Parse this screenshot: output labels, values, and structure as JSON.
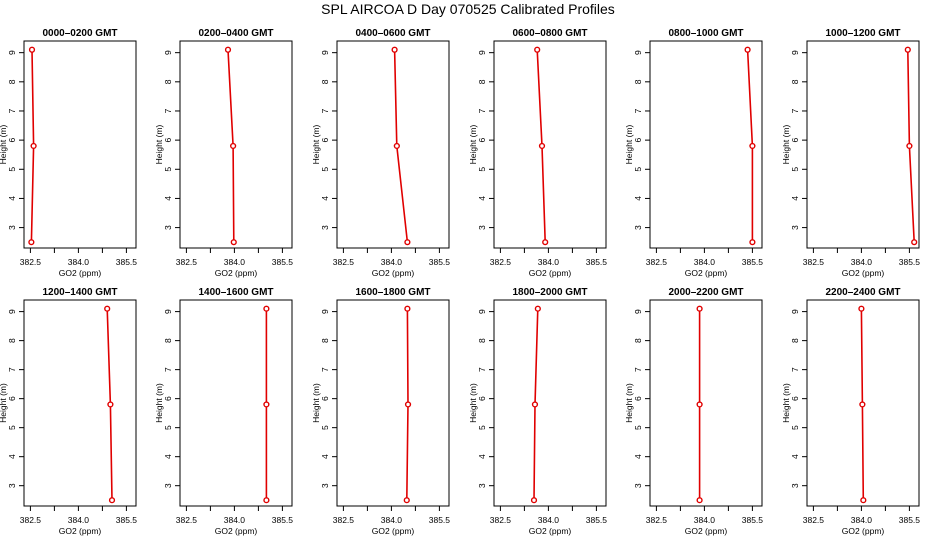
{
  "title": "SPL AIRCOA D  Day 070525  Calibrated Profiles",
  "colors": {
    "series": "#e00000",
    "axes": "#000000",
    "background": "#ffffff"
  },
  "chart_data": [
    {
      "type": "line",
      "title": "0000–0200 GMT",
      "xlabel": "GO2 (ppm)",
      "ylabel": "Height (m)",
      "x_ticks": [
        "382.5",
        "384.0",
        "385.5"
      ],
      "y_ticks": [
        "3",
        "4",
        "5",
        "6",
        "7",
        "8",
        "9"
      ],
      "xlim": [
        382.3,
        385.8
      ],
      "ylim": [
        2.3,
        9.4
      ],
      "heights": [
        9.1,
        5.8,
        2.5
      ],
      "values": [
        382.55,
        382.6,
        382.53
      ]
    },
    {
      "type": "line",
      "title": "0200–0400 GMT",
      "xlabel": "GO2 (ppm)",
      "ylabel": "Height (m)",
      "x_ticks": [
        "382.5",
        "384.0",
        "385.5"
      ],
      "y_ticks": [
        "3",
        "4",
        "5",
        "6",
        "7",
        "8",
        "9"
      ],
      "xlim": [
        382.3,
        385.8
      ],
      "ylim": [
        2.3,
        9.4
      ],
      "heights": [
        9.1,
        5.8,
        2.5
      ],
      "values": [
        383.8,
        383.96,
        383.98
      ]
    },
    {
      "type": "line",
      "title": "0400–0600 GMT",
      "xlabel": "GO2 (ppm)",
      "ylabel": "Height (m)",
      "x_ticks": [
        "382.5",
        "384.0",
        "385.5"
      ],
      "y_ticks": [
        "3",
        "4",
        "5",
        "6",
        "7",
        "8",
        "9"
      ],
      "xlim": [
        382.3,
        385.8
      ],
      "ylim": [
        2.3,
        9.4
      ],
      "heights": [
        9.1,
        5.8,
        2.5
      ],
      "values": [
        384.1,
        384.17,
        384.5
      ]
    },
    {
      "type": "line",
      "title": "0600–0800 GMT",
      "xlabel": "GO2 (ppm)",
      "ylabel": "Height (m)",
      "x_ticks": [
        "382.5",
        "384.0",
        "385.5"
      ],
      "y_ticks": [
        "3",
        "4",
        "5",
        "6",
        "7",
        "8",
        "9"
      ],
      "xlim": [
        382.3,
        385.8
      ],
      "ylim": [
        2.3,
        9.4
      ],
      "heights": [
        9.1,
        5.8,
        2.5
      ],
      "values": [
        383.65,
        383.8,
        383.9
      ]
    },
    {
      "type": "line",
      "title": "0800–1000 GMT",
      "xlabel": "GO2 (ppm)",
      "ylabel": "Height (m)",
      "x_ticks": [
        "382.5",
        "384.0",
        "385.5"
      ],
      "y_ticks": [
        "3",
        "4",
        "5",
        "6",
        "7",
        "8",
        "9"
      ],
      "xlim": [
        382.3,
        385.8
      ],
      "ylim": [
        2.3,
        9.4
      ],
      "heights": [
        9.1,
        5.8,
        2.5
      ],
      "values": [
        385.35,
        385.5,
        385.5
      ]
    },
    {
      "type": "line",
      "title": "1000–1200 GMT",
      "xlabel": "GO2 (ppm)",
      "ylabel": "Height (m)",
      "x_ticks": [
        "382.5",
        "384.0",
        "385.5"
      ],
      "y_ticks": [
        "3",
        "4",
        "5",
        "6",
        "7",
        "8",
        "9"
      ],
      "xlim": [
        382.3,
        385.8
      ],
      "ylim": [
        2.3,
        9.4
      ],
      "heights": [
        9.1,
        5.8,
        2.5
      ],
      "values": [
        385.45,
        385.5,
        385.65
      ]
    },
    {
      "type": "line",
      "title": "1200–1400 GMT",
      "xlabel": "GO2 (ppm)",
      "ylabel": "Height (m)",
      "x_ticks": [
        "382.5",
        "384.0",
        "385.5"
      ],
      "y_ticks": [
        "3",
        "4",
        "5",
        "6",
        "7",
        "8",
        "9"
      ],
      "xlim": [
        382.3,
        385.8
      ],
      "ylim": [
        2.3,
        9.4
      ],
      "heights": [
        9.1,
        5.8,
        2.5
      ],
      "values": [
        384.9,
        385.0,
        385.05
      ]
    },
    {
      "type": "line",
      "title": "1400–1600 GMT",
      "xlabel": "GO2 (ppm)",
      "ylabel": "Height (m)",
      "x_ticks": [
        "382.5",
        "384.0",
        "385.5"
      ],
      "y_ticks": [
        "3",
        "4",
        "5",
        "6",
        "7",
        "8",
        "9"
      ],
      "xlim": [
        382.3,
        385.8
      ],
      "ylim": [
        2.3,
        9.4
      ],
      "heights": [
        9.1,
        5.8,
        2.5
      ],
      "values": [
        385.0,
        385.0,
        385.0
      ]
    },
    {
      "type": "line",
      "title": "1600–1800 GMT",
      "xlabel": "GO2 (ppm)",
      "ylabel": "Height (m)",
      "x_ticks": [
        "382.5",
        "384.0",
        "385.5"
      ],
      "y_ticks": [
        "3",
        "4",
        "5",
        "6",
        "7",
        "8",
        "9"
      ],
      "xlim": [
        382.3,
        385.8
      ],
      "ylim": [
        2.3,
        9.4
      ],
      "heights": [
        9.1,
        5.8,
        2.5
      ],
      "values": [
        384.5,
        384.52,
        384.48
      ]
    },
    {
      "type": "line",
      "title": "1800–2000 GMT",
      "xlabel": "GO2 (ppm)",
      "ylabel": "Height (m)",
      "x_ticks": [
        "382.5",
        "384.0",
        "385.5"
      ],
      "y_ticks": [
        "3",
        "4",
        "5",
        "6",
        "7",
        "8",
        "9"
      ],
      "xlim": [
        382.3,
        385.8
      ],
      "ylim": [
        2.3,
        9.4
      ],
      "heights": [
        9.1,
        5.8,
        2.5
      ],
      "values": [
        383.67,
        383.58,
        383.55
      ]
    },
    {
      "type": "line",
      "title": "2000–2200 GMT",
      "xlabel": "GO2 (ppm)",
      "ylabel": "Height (m)",
      "x_ticks": [
        "382.5",
        "384.0",
        "385.5"
      ],
      "y_ticks": [
        "3",
        "4",
        "5",
        "6",
        "7",
        "8",
        "9"
      ],
      "xlim": [
        382.3,
        385.8
      ],
      "ylim": [
        2.3,
        9.4
      ],
      "heights": [
        9.1,
        5.8,
        2.5
      ],
      "values": [
        383.85,
        383.85,
        383.85
      ]
    },
    {
      "type": "line",
      "title": "2200–2400 GMT",
      "xlabel": "GO2 (ppm)",
      "ylabel": "Height (m)",
      "x_ticks": [
        "382.5",
        "384.0",
        "385.5"
      ],
      "y_ticks": [
        "3",
        "4",
        "5",
        "6",
        "7",
        "8",
        "9"
      ],
      "xlim": [
        382.3,
        385.8
      ],
      "ylim": [
        2.3,
        9.4
      ],
      "heights": [
        9.1,
        5.8,
        2.5
      ],
      "values": [
        384.0,
        384.03,
        384.06
      ]
    }
  ]
}
